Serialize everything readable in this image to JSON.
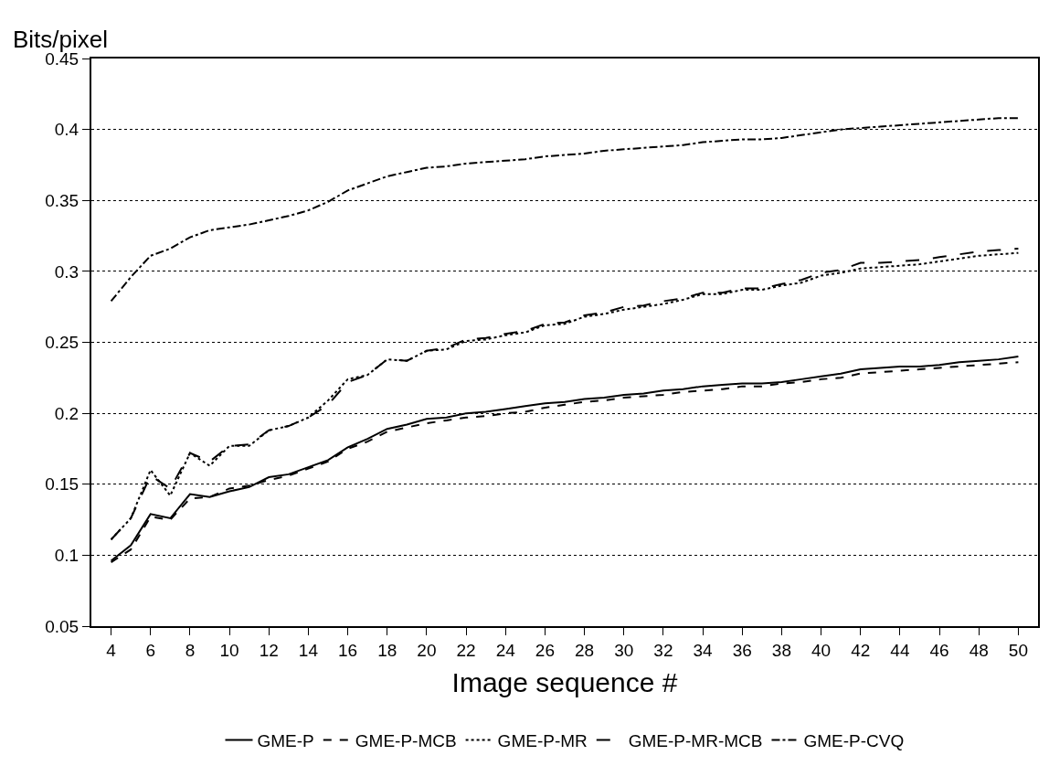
{
  "chart_data": {
    "type": "line",
    "ylabel": "Bits/pixel",
    "xlabel": "Image sequence #",
    "x": [
      4,
      5,
      6,
      7,
      8,
      9,
      10,
      11,
      12,
      13,
      14,
      15,
      16,
      17,
      18,
      19,
      20,
      21,
      22,
      23,
      24,
      25,
      26,
      27,
      28,
      29,
      30,
      31,
      32,
      33,
      34,
      35,
      36,
      37,
      38,
      39,
      40,
      41,
      42,
      43,
      44,
      45,
      46,
      47,
      48,
      49,
      50
    ],
    "xlim": [
      3,
      51
    ],
    "xticks": [
      4,
      6,
      8,
      10,
      12,
      14,
      16,
      18,
      20,
      22,
      24,
      26,
      28,
      30,
      32,
      34,
      36,
      38,
      40,
      42,
      44,
      46,
      48,
      50
    ],
    "ylim": [
      0.05,
      0.45
    ],
    "yticks": [
      0.05,
      0.1,
      0.15,
      0.2,
      0.25,
      0.3,
      0.35,
      0.4,
      0.45
    ],
    "grid": "y",
    "legend": "bottom",
    "marker": "none",
    "series": [
      {
        "name": "GME-P",
        "color": "#000000",
        "line_style": "solid",
        "values": [
          0.096,
          0.107,
          0.129,
          0.126,
          0.143,
          0.141,
          0.145,
          0.148,
          0.155,
          0.157,
          0.162,
          0.167,
          0.176,
          0.182,
          0.189,
          0.192,
          0.196,
          0.197,
          0.2,
          0.201,
          0.203,
          0.205,
          0.207,
          0.208,
          0.21,
          0.211,
          0.213,
          0.214,
          0.216,
          0.217,
          0.219,
          0.22,
          0.221,
          0.221,
          0.222,
          0.224,
          0.226,
          0.228,
          0.231,
          0.232,
          0.233,
          0.233,
          0.234,
          0.236,
          0.237,
          0.238,
          0.24
        ]
      },
      {
        "name": "GME-P-MCB",
        "color": "#000000",
        "line_style": "dashed",
        "values": [
          0.095,
          0.104,
          0.127,
          0.125,
          0.14,
          0.141,
          0.147,
          0.149,
          0.153,
          0.156,
          0.161,
          0.166,
          0.175,
          0.18,
          0.187,
          0.19,
          0.193,
          0.195,
          0.197,
          0.198,
          0.2,
          0.201,
          0.204,
          0.206,
          0.208,
          0.209,
          0.211,
          0.212,
          0.213,
          0.215,
          0.216,
          0.217,
          0.219,
          0.219,
          0.221,
          0.222,
          0.224,
          0.225,
          0.228,
          0.229,
          0.23,
          0.231,
          0.232,
          0.233,
          0.234,
          0.235,
          0.236
        ]
      },
      {
        "name": "GME-P-MR",
        "color": "#000000",
        "line_style": "dotted",
        "values": [
          0.111,
          0.126,
          0.16,
          0.142,
          0.172,
          0.163,
          0.177,
          0.177,
          0.188,
          0.191,
          0.197,
          0.209,
          0.224,
          0.227,
          0.238,
          0.237,
          0.244,
          0.245,
          0.251,
          0.252,
          0.255,
          0.257,
          0.262,
          0.263,
          0.268,
          0.27,
          0.273,
          0.275,
          0.277,
          0.28,
          0.284,
          0.284,
          0.287,
          0.287,
          0.29,
          0.292,
          0.297,
          0.299,
          0.302,
          0.303,
          0.304,
          0.305,
          0.307,
          0.309,
          0.311,
          0.312,
          0.313
        ]
      },
      {
        "name": "GME-P-MR-MCB",
        "color": "#000000",
        "line_style": "longdash",
        "values": [
          0.111,
          0.126,
          0.156,
          0.147,
          0.172,
          0.166,
          0.177,
          0.178,
          0.188,
          0.191,
          0.197,
          0.206,
          0.222,
          0.227,
          0.238,
          0.237,
          0.244,
          0.246,
          0.252,
          0.253,
          0.256,
          0.258,
          0.263,
          0.264,
          0.269,
          0.271,
          0.275,
          0.276,
          0.279,
          0.281,
          0.285,
          0.285,
          0.288,
          0.288,
          0.291,
          0.294,
          0.299,
          0.301,
          0.306,
          0.306,
          0.307,
          0.308,
          0.31,
          0.312,
          0.314,
          0.315,
          0.316
        ]
      },
      {
        "name": "GME-P-CVQ",
        "color": "#000000",
        "line_style": "dashdot",
        "values": [
          0.279,
          0.296,
          0.311,
          0.316,
          0.324,
          0.329,
          0.331,
          0.333,
          0.336,
          0.339,
          0.343,
          0.349,
          0.357,
          0.362,
          0.367,
          0.37,
          0.373,
          0.374,
          0.376,
          0.377,
          0.378,
          0.379,
          0.381,
          0.382,
          0.383,
          0.385,
          0.386,
          0.387,
          0.388,
          0.389,
          0.391,
          0.392,
          0.393,
          0.393,
          0.394,
          0.396,
          0.398,
          0.4,
          0.401,
          0.402,
          0.403,
          0.404,
          0.405,
          0.406,
          0.407,
          0.408,
          0.408
        ]
      }
    ]
  }
}
